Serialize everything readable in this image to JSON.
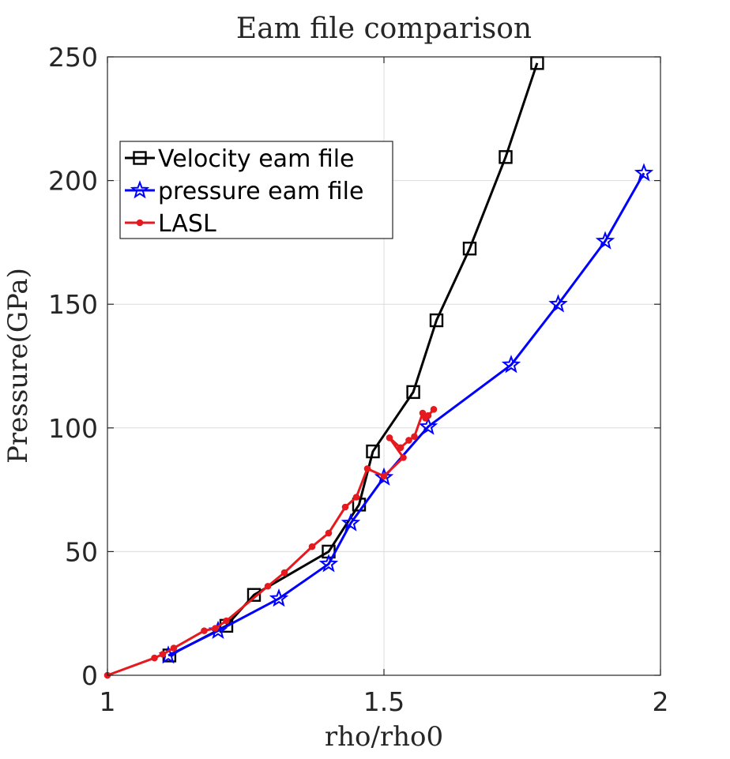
{
  "chart_data": {
    "type": "line",
    "title": "Eam file comparison",
    "xlabel": "rho/rho0",
    "ylabel": "Pressure(GPa)",
    "xlim": [
      1,
      2
    ],
    "ylim": [
      0,
      250
    ],
    "xticks": [
      1,
      1.5,
      2
    ],
    "yticks": [
      0,
      50,
      100,
      150,
      200,
      250
    ],
    "xtick_labels": [
      "1",
      "1.5",
      "2"
    ],
    "ytick_labels": [
      "0",
      "50",
      "100",
      "150",
      "200",
      "250"
    ],
    "grid": true,
    "legend_position": "upper-left",
    "series": [
      {
        "name": "Velocity eam file",
        "color": "#000000",
        "marker": "square",
        "x": [
          1.112,
          1.215,
          1.265,
          1.4,
          1.455,
          1.48,
          1.553,
          1.595,
          1.655,
          1.72,
          1.777
        ],
        "y": [
          8,
          20,
          32.5,
          50,
          69,
          90.5,
          114.5,
          143.5,
          172.5,
          209.5,
          247.5
        ]
      },
      {
        "name": "pressure eam file",
        "color": "#0000ff",
        "marker": "star",
        "x": [
          1.11,
          1.2,
          1.31,
          1.4,
          1.44,
          1.5,
          1.58,
          1.73,
          1.815,
          1.9,
          1.97
        ],
        "y": [
          8,
          18,
          31,
          45,
          61.5,
          80,
          100.5,
          125.5,
          150,
          175.5,
          203
        ]
      },
      {
        "name": "LASL",
        "color": "#e6191e",
        "marker": "dot",
        "x": [
          1,
          1.085,
          1.1,
          1.12,
          1.175,
          1.195,
          1.215,
          1.29,
          1.32,
          1.37,
          1.4,
          1.43,
          1.45,
          1.47,
          1.5,
          1.535,
          1.51,
          1.53,
          1.545,
          1.555,
          1.57,
          1.575,
          1.58,
          1.59
        ],
        "y": [
          0,
          7,
          8.5,
          11,
          18,
          19,
          22,
          36,
          41.5,
          52,
          57.5,
          68,
          72,
          83.5,
          80.5,
          88,
          96,
          92,
          95,
          96.5,
          106,
          104,
          105,
          107.5
        ]
      }
    ]
  }
}
